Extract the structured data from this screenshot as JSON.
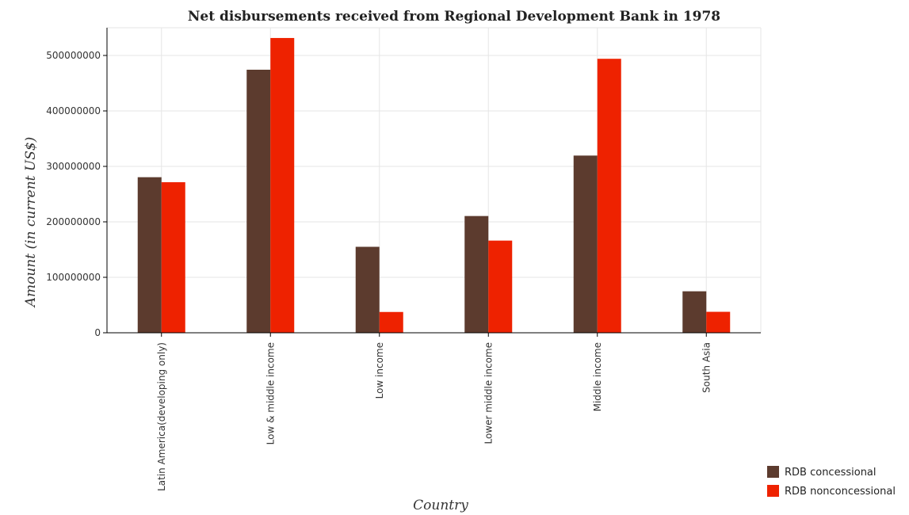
{
  "colors": {
    "concessional": "#5c3b2e",
    "nonconcessional": "#ee2200"
  },
  "chart_data": {
    "type": "bar",
    "title": "Net disbursements received from Regional Development Bank in 1978",
    "xlabel": "Country",
    "ylabel": "Amount (in current US$)",
    "categories": [
      "Latin America(developing only)",
      "Low & middle income",
      "Low income",
      "Lower middle income",
      "Middle income",
      "South Asia"
    ],
    "series": [
      {
        "name": "RDB concessional",
        "values": [
          280500000,
          474300000,
          155000000,
          210500000,
          319500000,
          74800000
        ]
      },
      {
        "name": "RDB nonconcessional",
        "values": [
          271500000,
          531500000,
          37500000,
          166200000,
          494000000,
          37800000
        ]
      }
    ],
    "ylim": [
      0,
      550000000
    ],
    "yticks": [
      0,
      100000000,
      200000000,
      300000000,
      400000000,
      500000000
    ],
    "ytick_labels": [
      "0",
      "100000000",
      "200000000",
      "300000000",
      "400000000",
      "500000000"
    ],
    "grid": true,
    "legend_position": "bottom-right"
  }
}
